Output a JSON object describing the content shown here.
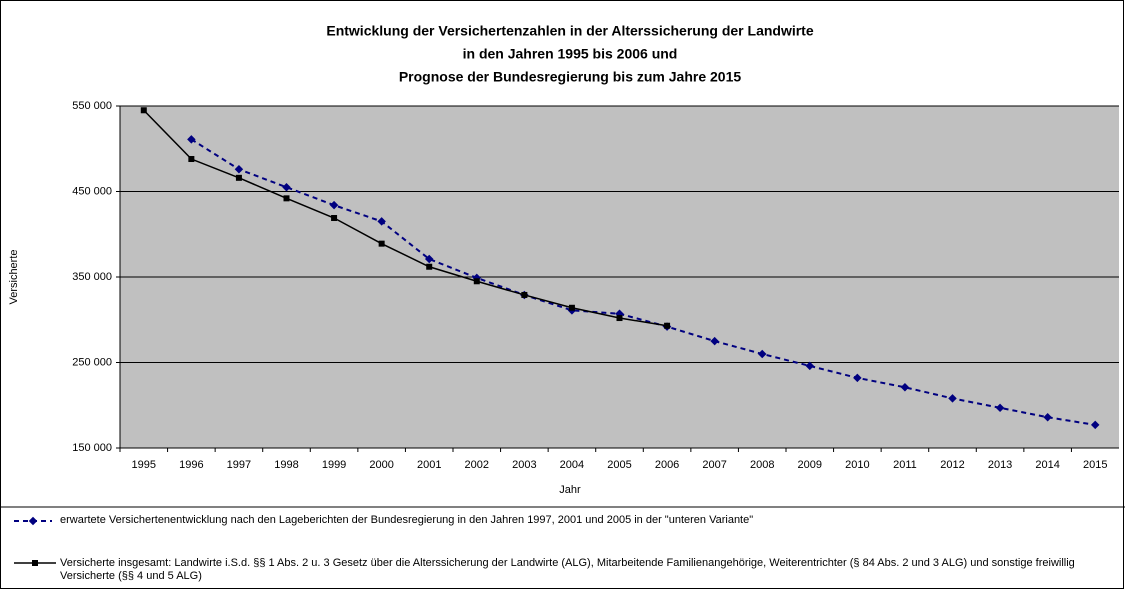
{
  "chart_data": {
    "type": "line",
    "title": [
      "Entwicklung der Versichertenzahlen in der Alterssicherung der Landwirte",
      "in den Jahren 1995 bis 2006 und",
      "Prognose der Bundesregierung bis zum Jahre 2015"
    ],
    "x_label": "Jahr",
    "y_label": "Versicherte",
    "categories": [
      "1995",
      "1996",
      "1997",
      "1998",
      "1999",
      "2000",
      "2001",
      "2002",
      "2003",
      "2004",
      "2005",
      "2006",
      "2007",
      "2008",
      "2009",
      "2010",
      "2011",
      "2012",
      "2013",
      "2014",
      "2015"
    ],
    "series": [
      {
        "name": "erwartete Versichertenentwicklung nach den Lageberichten der Bundesregierung in den Jahren 1997, 2001 und 2005 in der \"unteren Variante\"",
        "color": "#000080",
        "values": [
          null,
          511000,
          476000,
          455000,
          434000,
          415000,
          371000,
          349000,
          329000,
          311000,
          307000,
          292000,
          275000,
          260000,
          246000,
          232000,
          221000,
          208000,
          197000,
          186000,
          177000
        ]
      },
      {
        "name": "Versicherte insgesamt: Landwirte i.S.d. §§ 1 Abs. 2 u. 3 Gesetz über die Alterssicherung der Landwirte (ALG), Mitarbeitende Familienangehörige, Weiterentrichter (§ 84 Abs. 2 und 3 ALG) und sonstige freiwillig Versicherte (§§ 4 und 5 ALG)",
        "color": "#000000",
        "values": [
          545000,
          488000,
          466000,
          442000,
          419000,
          389000,
          362000,
          345000,
          329000,
          314000,
          302000,
          293000,
          null,
          null,
          null,
          null,
          null,
          null,
          null,
          null,
          null
        ]
      }
    ],
    "ylim": [
      150000,
      550000
    ],
    "yticks": [
      {
        "value": 150000,
        "label": "150 000"
      },
      {
        "value": 250000,
        "label": "250 000"
      },
      {
        "value": 350000,
        "label": "350 000"
      },
      {
        "value": 450000,
        "label": "450 000"
      },
      {
        "value": 550000,
        "label": "550 000"
      }
    ],
    "grid": true,
    "plot_background": "#c0c0c0"
  }
}
